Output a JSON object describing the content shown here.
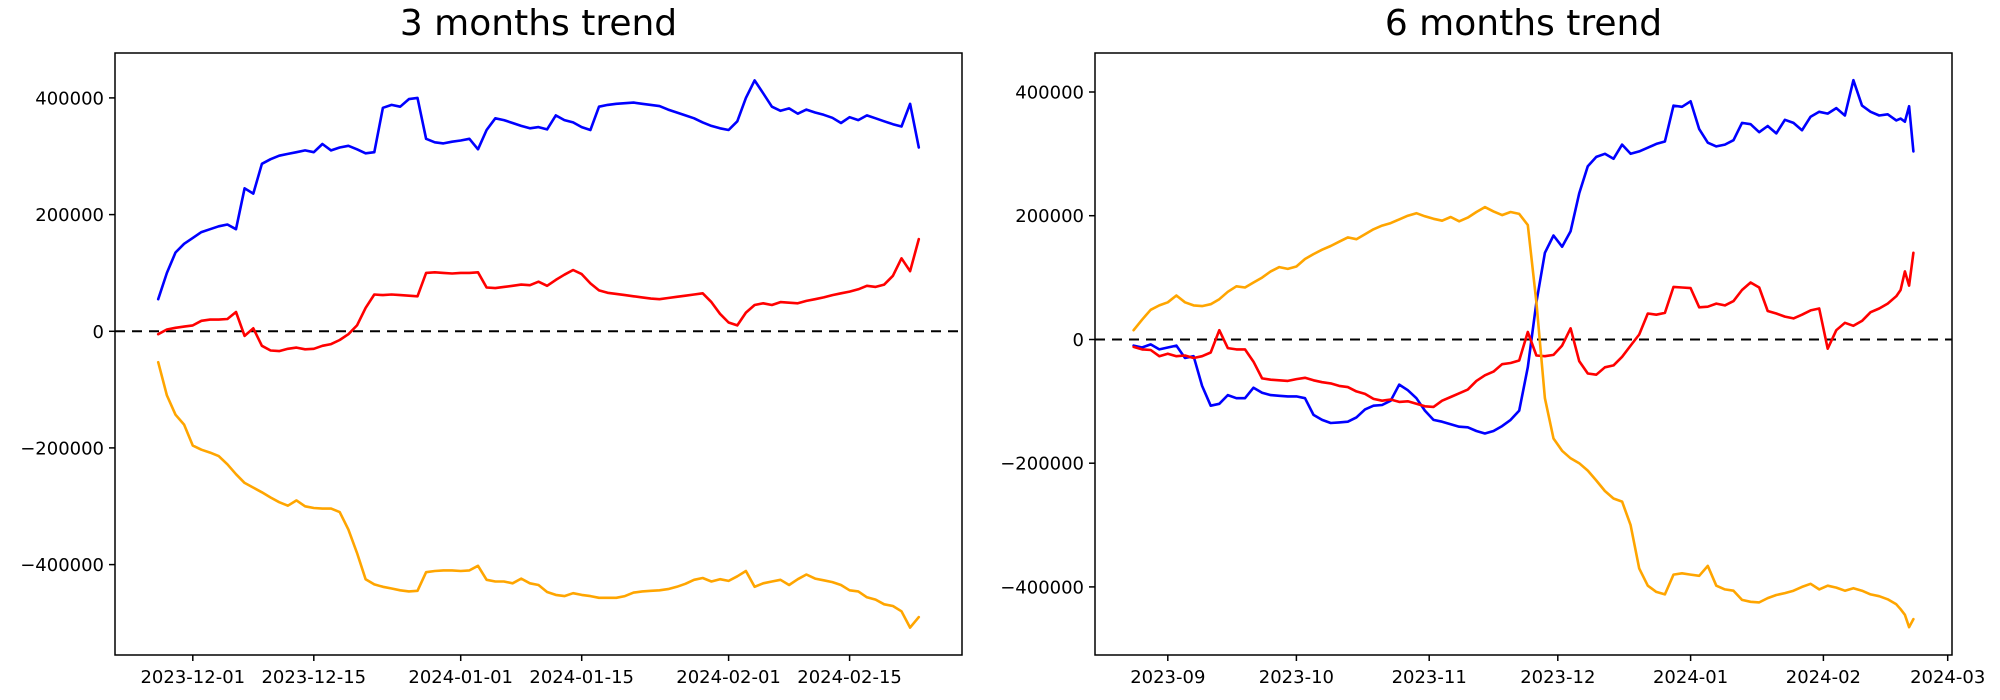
{
  "page": {
    "background": "#ffffff"
  },
  "chart_data": [
    {
      "type": "line",
      "title": "3 months trend",
      "xlabel": "",
      "ylabel": "",
      "grid": false,
      "legend": "none",
      "zero_line": true,
      "zero_line_style": "black dashed",
      "axes_rect": [
        115,
        53,
        962,
        655
      ],
      "xlim": [
        "2023-11-22",
        "2024-02-28"
      ],
      "ylim": [
        -555000,
        477000
      ],
      "x_tick_dates": [
        "2023-12-01",
        "2023-12-15",
        "2024-01-01",
        "2024-01-15",
        "2024-02-01",
        "2024-02-15"
      ],
      "x_tick_labels": [
        "2023-12-01",
        "2023-12-15",
        "2024-01-01",
        "2024-01-15",
        "2024-02-01",
        "2024-02-15"
      ],
      "y_tick_values": [
        400000,
        200000,
        0,
        -200000,
        -400000
      ],
      "y_tick_labels": [
        "400000",
        "200000",
        "0",
        "−200000",
        "−400000"
      ],
      "dates": [
        "2023-11-27",
        "2023-11-28",
        "2023-11-29",
        "2023-11-30",
        "2023-12-01",
        "2023-12-02",
        "2023-12-03",
        "2023-12-04",
        "2023-12-05",
        "2023-12-06",
        "2023-12-07",
        "2023-12-08",
        "2023-12-09",
        "2023-12-10",
        "2023-12-11",
        "2023-12-12",
        "2023-12-13",
        "2023-12-14",
        "2023-12-15",
        "2023-12-16",
        "2023-12-17",
        "2023-12-18",
        "2023-12-19",
        "2023-12-20",
        "2023-12-21",
        "2023-12-22",
        "2023-12-23",
        "2023-12-24",
        "2023-12-25",
        "2023-12-26",
        "2023-12-27",
        "2023-12-28",
        "2023-12-29",
        "2023-12-30",
        "2023-12-31",
        "2024-01-01",
        "2024-01-02",
        "2024-01-03",
        "2024-01-04",
        "2024-01-05",
        "2024-01-06",
        "2024-01-07",
        "2024-01-08",
        "2024-01-09",
        "2024-01-10",
        "2024-01-11",
        "2024-01-12",
        "2024-01-13",
        "2024-01-14",
        "2024-01-15",
        "2024-01-16",
        "2024-01-17",
        "2024-01-18",
        "2024-01-19",
        "2024-01-20",
        "2024-01-21",
        "2024-01-22",
        "2024-01-23",
        "2024-01-24",
        "2024-01-25",
        "2024-01-26",
        "2024-01-27",
        "2024-01-28",
        "2024-01-29",
        "2024-01-30",
        "2024-01-31",
        "2024-02-01",
        "2024-02-02",
        "2024-02-03",
        "2024-02-04",
        "2024-02-05",
        "2024-02-06",
        "2024-02-07",
        "2024-02-08",
        "2024-02-09",
        "2024-02-10",
        "2024-02-11",
        "2024-02-12",
        "2024-02-13",
        "2024-02-14",
        "2024-02-15",
        "2024-02-16",
        "2024-02-17",
        "2024-02-18",
        "2024-02-19",
        "2024-02-20",
        "2024-02-21",
        "2024-02-22",
        "2024-02-23"
      ],
      "series": [
        {
          "name": "blue",
          "color": "#0000ff",
          "values": [
            55000,
            100000,
            135000,
            150000,
            160000,
            170000,
            175000,
            180000,
            183000,
            175000,
            245000,
            236000,
            287000,
            295000,
            301000,
            304000,
            307000,
            310000,
            307000,
            321000,
            310000,
            315000,
            318000,
            312000,
            305000,
            307000,
            383000,
            388000,
            385000,
            398000,
            400000,
            330000,
            324000,
            322000,
            325000,
            327000,
            330000,
            312000,
            345000,
            365000,
            362000,
            357000,
            352000,
            348000,
            350000,
            346000,
            370000,
            362000,
            358000,
            350000,
            345000,
            385000,
            388000,
            390000,
            391000,
            392000,
            390000,
            388000,
            386000,
            380000,
            375000,
            370000,
            365000,
            358000,
            352000,
            348000,
            345000,
            360000,
            400000,
            430000,
            408000,
            385000,
            378000,
            382000,
            373000,
            380000,
            375000,
            371000,
            366000,
            357000,
            367000,
            362000,
            370000,
            365000,
            360000,
            355000,
            351000,
            390000,
            315000
          ]
        },
        {
          "name": "red",
          "color": "#ff0000",
          "values": [
            -5000,
            3000,
            6000,
            8000,
            10000,
            18000,
            20000,
            20000,
            21000,
            33000,
            -8000,
            5000,
            -25000,
            -33000,
            -34000,
            -30000,
            -28000,
            -31000,
            -30000,
            -25000,
            -22000,
            -15000,
            -5000,
            10000,
            40000,
            63000,
            62000,
            63000,
            62000,
            61000,
            60000,
            100000,
            101000,
            100000,
            99000,
            100000,
            100000,
            101000,
            75000,
            74000,
            76000,
            78000,
            80000,
            79000,
            85000,
            78000,
            88000,
            97000,
            105000,
            98000,
            82000,
            70000,
            66000,
            64000,
            62000,
            60000,
            58000,
            56000,
            55000,
            57000,
            59000,
            61000,
            63000,
            65000,
            50000,
            30000,
            15000,
            10000,
            32000,
            45000,
            48000,
            45000,
            50000,
            49000,
            48000,
            52000,
            55000,
            58000,
            62000,
            65000,
            68000,
            72000,
            78000,
            76000,
            80000,
            95000,
            125000,
            103000,
            158000
          ]
        },
        {
          "name": "orange",
          "color": "#ffa500",
          "values": [
            -53000,
            -110000,
            -143000,
            -160000,
            -196000,
            -203000,
            -208000,
            -214000,
            -228000,
            -245000,
            -260000,
            -268000,
            -276000,
            -285000,
            -293000,
            -299000,
            -290000,
            -300000,
            -303000,
            -304000,
            -304000,
            -310000,
            -340000,
            -380000,
            -425000,
            -434000,
            -438000,
            -441000,
            -444000,
            -446000,
            -445000,
            -413000,
            -411000,
            -410000,
            -410000,
            -411000,
            -410000,
            -402000,
            -426000,
            -429000,
            -429000,
            -432000,
            -424000,
            -432000,
            -435000,
            -447000,
            -452000,
            -454000,
            -449000,
            -452000,
            -454000,
            -457000,
            -457000,
            -457000,
            -454000,
            -448000,
            -446000,
            -445000,
            -444000,
            -442000,
            -438000,
            -433000,
            -426000,
            -423000,
            -429000,
            -425000,
            -428000,
            -420000,
            -411000,
            -438000,
            -432000,
            -429000,
            -426000,
            -435000,
            -425000,
            -417000,
            -424000,
            -427000,
            -430000,
            -435000,
            -444000,
            -446000,
            -456000,
            -460000,
            -468000,
            -471000,
            -480000,
            -508000,
            -490000
          ]
        }
      ]
    },
    {
      "type": "line",
      "title": "6 months trend",
      "xlabel": "",
      "ylabel": "",
      "grid": false,
      "legend": "none",
      "zero_line": true,
      "zero_line_style": "black dashed",
      "axes_rect": [
        95,
        53,
        952,
        655
      ],
      "xlim": [
        "2023-08-15",
        "2024-03-02"
      ],
      "ylim": [
        -510000,
        463000
      ],
      "x_tick_dates": [
        "2023-09-01",
        "2023-10-01",
        "2023-11-01",
        "2023-12-01",
        "2024-01-01",
        "2024-02-01",
        "2024-03-01"
      ],
      "x_tick_labels": [
        "2023-09",
        "2023-10",
        "2023-11",
        "2023-12",
        "2024-01",
        "2024-02",
        "2024-03"
      ],
      "y_tick_values": [
        400000,
        200000,
        0,
        -200000,
        -400000
      ],
      "y_tick_labels": [
        "400000",
        "200000",
        "0",
        "−200000",
        "−400000"
      ],
      "dates": [
        "2023-08-24",
        "2023-08-26",
        "2023-08-28",
        "2023-08-30",
        "2023-09-01",
        "2023-09-03",
        "2023-09-05",
        "2023-09-07",
        "2023-09-09",
        "2023-09-11",
        "2023-09-13",
        "2023-09-15",
        "2023-09-17",
        "2023-09-19",
        "2023-09-21",
        "2023-09-23",
        "2023-09-25",
        "2023-09-27",
        "2023-09-29",
        "2023-10-01",
        "2023-10-03",
        "2023-10-05",
        "2023-10-07",
        "2023-10-09",
        "2023-10-11",
        "2023-10-13",
        "2023-10-15",
        "2023-10-17",
        "2023-10-19",
        "2023-10-21",
        "2023-10-23",
        "2023-10-25",
        "2023-10-27",
        "2023-10-29",
        "2023-10-31",
        "2023-11-02",
        "2023-11-04",
        "2023-11-06",
        "2023-11-08",
        "2023-11-10",
        "2023-11-12",
        "2023-11-14",
        "2023-11-16",
        "2023-11-18",
        "2023-11-20",
        "2023-11-22",
        "2023-11-24",
        "2023-11-26",
        "2023-11-28",
        "2023-11-30",
        "2023-12-02",
        "2023-12-04",
        "2023-12-06",
        "2023-12-08",
        "2023-12-10",
        "2023-12-12",
        "2023-12-14",
        "2023-12-16",
        "2023-12-18",
        "2023-12-20",
        "2023-12-22",
        "2023-12-24",
        "2023-12-26",
        "2023-12-28",
        "2023-12-30",
        "2024-01-01",
        "2024-01-03",
        "2024-01-05",
        "2024-01-07",
        "2024-01-09",
        "2024-01-11",
        "2024-01-13",
        "2024-01-15",
        "2024-01-17",
        "2024-01-19",
        "2024-01-21",
        "2024-01-23",
        "2024-01-25",
        "2024-01-27",
        "2024-01-29",
        "2024-01-31",
        "2024-02-02",
        "2024-02-04",
        "2024-02-06",
        "2024-02-08",
        "2024-02-10",
        "2024-02-12",
        "2024-02-14",
        "2024-02-16",
        "2024-02-18",
        "2024-02-19",
        "2024-02-20",
        "2024-02-21",
        "2024-02-22"
      ],
      "series": [
        {
          "name": "blue",
          "color": "#0000ff",
          "values": [
            -10000,
            -13000,
            -8000,
            -16000,
            -13000,
            -10000,
            -30000,
            -27000,
            -75000,
            -107000,
            -104000,
            -90000,
            -95000,
            -95000,
            -78000,
            -86000,
            -90000,
            -91000,
            -92000,
            -92000,
            -95000,
            -122000,
            -130000,
            -135000,
            -134000,
            -133000,
            -126000,
            -113000,
            -107000,
            -106000,
            -99000,
            -73000,
            -82000,
            -95000,
            -115000,
            -130000,
            -133000,
            -137000,
            -141000,
            -142000,
            -148000,
            -152000,
            -148000,
            -140000,
            -130000,
            -115000,
            -45000,
            60000,
            140000,
            168000,
            150000,
            175000,
            236000,
            280000,
            295000,
            300000,
            292000,
            315000,
            300000,
            304000,
            310000,
            316000,
            320000,
            378000,
            376000,
            385000,
            340000,
            318000,
            312000,
            315000,
            322000,
            350000,
            348000,
            335000,
            345000,
            333000,
            355000,
            350000,
            338000,
            360000,
            368000,
            365000,
            374000,
            362000,
            419000,
            378000,
            368000,
            362000,
            364000,
            354000,
            357000,
            352000,
            377000,
            304000
          ]
        },
        {
          "name": "red",
          "color": "#ff0000",
          "values": [
            -12000,
            -16000,
            -17000,
            -27000,
            -23000,
            -27000,
            -26000,
            -30000,
            -27000,
            -21000,
            15000,
            -14000,
            -16000,
            -16000,
            -36000,
            -63000,
            -65000,
            -66000,
            -67000,
            -64000,
            -62000,
            -66000,
            -69000,
            -71000,
            -75000,
            -77000,
            -84000,
            -88000,
            -96000,
            -99000,
            -97000,
            -101000,
            -100000,
            -104000,
            -108000,
            -109000,
            -99000,
            -93000,
            -87000,
            -81000,
            -67000,
            -58000,
            -52000,
            -40000,
            -38000,
            -34000,
            12000,
            -26000,
            -27000,
            -25000,
            -10000,
            18000,
            -35000,
            -55000,
            -57000,
            -45000,
            -42000,
            -28000,
            -10000,
            8000,
            42000,
            40000,
            43000,
            85000,
            84000,
            83000,
            52000,
            53000,
            58000,
            55000,
            62000,
            80000,
            92000,
            84000,
            46000,
            42000,
            37000,
            34000,
            40000,
            47000,
            50000,
            -15000,
            15000,
            27000,
            22000,
            30000,
            44000,
            50000,
            58000,
            70000,
            80000,
            110000,
            87000,
            140000
          ]
        },
        {
          "name": "orange",
          "color": "#ffa500",
          "values": [
            15000,
            32000,
            48000,
            55000,
            60000,
            71000,
            60000,
            55000,
            54000,
            57000,
            65000,
            77000,
            86000,
            84000,
            92000,
            100000,
            110000,
            117000,
            114000,
            118000,
            130000,
            138000,
            145000,
            151000,
            158000,
            165000,
            162000,
            170000,
            178000,
            184000,
            188000,
            194000,
            200000,
            204000,
            199000,
            195000,
            192000,
            198000,
            191000,
            197000,
            206000,
            214000,
            207000,
            201000,
            206000,
            203000,
            185000,
            60000,
            -95000,
            -160000,
            -180000,
            -192000,
            -200000,
            -212000,
            -228000,
            -245000,
            -257000,
            -262000,
            -300000,
            -370000,
            -398000,
            -408000,
            -412000,
            -380000,
            -378000,
            -380000,
            -382000,
            -366000,
            -398000,
            -404000,
            -406000,
            -421000,
            -424000,
            -425000,
            -418000,
            -413000,
            -410000,
            -406000,
            -400000,
            -395000,
            -404000,
            -398000,
            -401000,
            -406000,
            -402000,
            -406000,
            -412000,
            -415000,
            -420000,
            -428000,
            -436000,
            -445000,
            -465000,
            -452000
          ]
        }
      ]
    }
  ]
}
